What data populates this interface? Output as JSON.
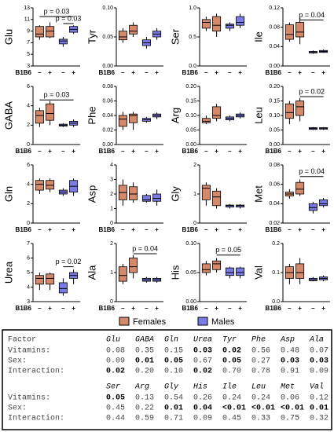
{
  "legend": [
    {
      "name": "Females",
      "color": "#d4896b"
    },
    {
      "name": "Males",
      "color": "#7b7be6"
    }
  ],
  "chart_data": [
    {
      "type": "box",
      "title": "Glu",
      "xlabel": "B1B6",
      "categories": [
        "–",
        "+",
        "–",
        "+"
      ],
      "ylim": [
        3,
        13
      ],
      "yticks": [
        3,
        5,
        7,
        9,
        11,
        13
      ],
      "series": [
        {
          "boxes": [
            [
              7.5,
              8,
              8.5,
              9.8,
              10
            ],
            [
              7.8,
              8,
              9,
              9.8,
              10.5
            ]
          ]
        },
        {
          "boxes": [
            [
              6.3,
              6.8,
              7.3,
              7.6,
              8
            ],
            [
              8.5,
              8.8,
              9.3,
              9.8,
              10
            ]
          ]
        }
      ],
      "annotations": [
        {
          "text": "p = 0.03",
          "from": 0,
          "to": 3,
          "y": 11.5
        },
        {
          "text": "p = 0.03",
          "from": 2,
          "to": 3,
          "y": 10.3
        }
      ]
    },
    {
      "type": "box",
      "title": "Tyr",
      "xlabel": "B1B6",
      "categories": [
        "–",
        "+",
        "–",
        "+"
      ],
      "ylim": [
        0,
        0.1
      ],
      "yticks": [
        {
          "value": 0,
          "label": "0.00"
        },
        0.05,
        {
          "value": 0.1,
          "label": "0.10"
        }
      ],
      "series": [
        {
          "boxes": [
            [
              0.04,
              0.045,
              0.05,
              0.06,
              0.065
            ],
            [
              0.05,
              0.055,
              0.06,
              0.07,
              0.075
            ]
          ]
        },
        {
          "boxes": [
            [
              0.03,
              0.035,
              0.04,
              0.045,
              0.05
            ],
            [
              0.045,
              0.05,
              0.055,
              0.06,
              0.065
            ]
          ]
        }
      ]
    },
    {
      "type": "box",
      "title": "Ser",
      "xlabel": "B1B6",
      "categories": [
        "–",
        "+",
        "–",
        "+"
      ],
      "ylim": [
        0,
        1
      ],
      "yticks": [
        {
          "value": 0,
          "label": "0.0"
        },
        0.5,
        {
          "value": 1,
          "label": "1.0"
        }
      ],
      "series": [
        {
          "boxes": [
            [
              0.6,
              0.65,
              0.75,
              0.8,
              0.85
            ],
            [
              0.5,
              0.6,
              0.7,
              0.85,
              0.9
            ]
          ]
        },
        {
          "boxes": [
            [
              0.6,
              0.65,
              0.7,
              0.72,
              0.75
            ],
            [
              0.65,
              0.7,
              0.75,
              0.85,
              0.9
            ]
          ]
        }
      ]
    },
    {
      "type": "box",
      "title": "Ile",
      "xlabel": "B1B6",
      "categories": [
        "–",
        "+",
        "–",
        "+"
      ],
      "ylim": [
        0,
        0.12
      ],
      "yticks": [
        {
          "value": 0,
          "label": "0.00"
        },
        0.04,
        0.08,
        0.12
      ],
      "series": [
        {
          "boxes": [
            [
              0.05,
              0.055,
              0.065,
              0.085,
              0.09
            ],
            [
              0.045,
              0.06,
              0.07,
              0.09,
              0.1
            ]
          ]
        },
        {
          "boxes": [
            [
              0.025,
              0.027,
              0.028,
              0.03,
              0.032
            ],
            [
              0.027,
              0.028,
              0.03,
              0.032,
              0.034
            ]
          ]
        }
      ],
      "annotations": [
        {
          "text": "p = 0.04",
          "from": 1,
          "to": 3,
          "y": 0.095
        }
      ]
    },
    {
      "type": "box",
      "title": "GABA",
      "xlabel": "B1B6",
      "categories": [
        "–",
        "+",
        "–",
        "+"
      ],
      "ylim": [
        0,
        6
      ],
      "yticks": [
        0,
        2,
        4,
        6
      ],
      "series": [
        {
          "boxes": [
            [
              1.8,
              2.2,
              3,
              3.5,
              3.8
            ],
            [
              2,
              2.5,
              3.2,
              4.2,
              4.5
            ]
          ]
        },
        {
          "boxes": [
            [
              1.8,
              1.9,
              2,
              2.1,
              2.2
            ],
            [
              1.8,
              2,
              2.2,
              2.4,
              2.6
            ]
          ]
        }
      ],
      "annotations": [
        {
          "text": "p = 0.03",
          "from": 0,
          "to": 3,
          "y": 4.6
        }
      ]
    },
    {
      "type": "box",
      "title": "Phe",
      "xlabel": "B1B6",
      "categories": [
        "–",
        "+",
        "–",
        "+"
      ],
      "ylim": [
        0,
        0.08
      ],
      "yticks": [
        {
          "value": 0,
          "label": "0.00"
        },
        0.02,
        0.04,
        0.06,
        0.08
      ],
      "series": [
        {
          "boxes": [
            [
              0.02,
              0.025,
              0.035,
              0.04,
              0.045
            ],
            [
              0.02,
              0.03,
              0.04,
              0.042,
              0.045
            ]
          ]
        },
        {
          "boxes": [
            [
              0.03,
              0.032,
              0.034,
              0.036,
              0.038
            ],
            [
              0.035,
              0.038,
              0.04,
              0.042,
              0.044
            ]
          ]
        }
      ]
    },
    {
      "type": "box",
      "title": "Arg",
      "xlabel": "B1B6",
      "categories": [
        "–",
        "+",
        "–",
        "+"
      ],
      "ylim": [
        0,
        0.2
      ],
      "yticks": [
        {
          "value": 0,
          "label": "0.00"
        },
        0.05,
        {
          "value": 0.1,
          "label": "0.10"
        },
        0.15,
        {
          "value": 0.2,
          "label": "0.20"
        }
      ],
      "series": [
        {
          "boxes": [
            [
              0.07,
              0.075,
              0.08,
              0.09,
              0.1
            ],
            [
              0.08,
              0.09,
              0.1,
              0.13,
              0.14
            ]
          ]
        },
        {
          "boxes": [
            [
              0.08,
              0.085,
              0.09,
              0.095,
              0.1
            ],
            [
              0.09,
              0.095,
              0.1,
              0.105,
              0.11
            ]
          ]
        }
      ]
    },
    {
      "type": "box",
      "title": "Leu",
      "xlabel": "B1B6",
      "categories": [
        "–",
        "+",
        "–",
        "+"
      ],
      "ylim": [
        0,
        0.2
      ],
      "yticks": [
        {
          "value": 0,
          "label": "0.00"
        },
        0.05,
        {
          "value": 0.1,
          "label": "0.10"
        },
        0.15,
        {
          "value": 0.2,
          "label": "0.20"
        }
      ],
      "series": [
        {
          "boxes": [
            [
              0.07,
              0.09,
              0.11,
              0.14,
              0.15
            ],
            [
              0.08,
              0.1,
              0.13,
              0.15,
              0.16
            ]
          ]
        },
        {
          "boxes": [
            [
              0.05,
              0.052,
              0.055,
              0.058,
              0.06
            ],
            [
              0.05,
              0.053,
              0.056,
              0.058,
              0.06
            ]
          ]
        }
      ],
      "annotations": [
        {
          "text": "p = 0.02",
          "from": 1,
          "to": 3,
          "y": 0.165
        }
      ]
    },
    {
      "type": "box",
      "title": "Gln",
      "xlabel": "B1B6",
      "categories": [
        "–",
        "+",
        "–",
        "+"
      ],
      "ylim": [
        0,
        6
      ],
      "yticks": [
        0,
        2,
        4,
        6
      ],
      "series": [
        {
          "boxes": [
            [
              3,
              3.4,
              4,
              4.4,
              4.6
            ],
            [
              3.2,
              3.5,
              3.9,
              4.4,
              4.6
            ]
          ]
        },
        {
          "boxes": [
            [
              2.8,
              3,
              3.2,
              3.4,
              3.6
            ],
            [
              2.8,
              3.2,
              3.8,
              4.4,
              4.6
            ]
          ]
        }
      ]
    },
    {
      "type": "box",
      "title": "Asp",
      "xlabel": "B1B6",
      "categories": [
        "–",
        "+",
        "–",
        "+"
      ],
      "ylim": [
        0,
        4
      ],
      "yticks": [
        0,
        1,
        2,
        3,
        4
      ],
      "series": [
        {
          "boxes": [
            [
              1.2,
              1.6,
              2.1,
              2.6,
              3
            ],
            [
              1.4,
              1.6,
              2,
              2.5,
              2.8
            ]
          ]
        },
        {
          "boxes": [
            [
              1.4,
              1.5,
              1.6,
              1.9,
              2
            ],
            [
              1.2,
              1.5,
              1.7,
              2,
              2.3
            ]
          ]
        }
      ]
    },
    {
      "type": "box",
      "title": "Gly",
      "xlabel": "B1B6",
      "categories": [
        "–",
        "+",
        "–",
        "+"
      ],
      "ylim": [
        0,
        2
      ],
      "yticks": [
        0,
        1,
        2
      ],
      "series": [
        {
          "boxes": [
            [
              0.6,
              0.8,
              1.2,
              1.3,
              1.4
            ],
            [
              0.5,
              0.6,
              0.9,
              1.1,
              1.2
            ]
          ]
        },
        {
          "boxes": [
            [
              0.5,
              0.55,
              0.6,
              0.62,
              0.65
            ],
            [
              0.5,
              0.55,
              0.6,
              0.62,
              0.65
            ]
          ]
        }
      ]
    },
    {
      "type": "box",
      "title": "Met",
      "xlabel": "B1B6",
      "categories": [
        "–",
        "+",
        "–",
        "+"
      ],
      "ylim": [
        0.02,
        0.08
      ],
      "yticks": [
        0.02,
        0.04,
        0.06,
        0.08
      ],
      "series": [
        {
          "boxes": [
            [
              0.045,
              0.048,
              0.05,
              0.052,
              0.055
            ],
            [
              0.048,
              0.05,
              0.055,
              0.062,
              0.065
            ]
          ]
        },
        {
          "boxes": [
            [
              0.03,
              0.033,
              0.036,
              0.04,
              0.042
            ],
            [
              0.036,
              0.038,
              0.04,
              0.044,
              0.046
            ]
          ]
        }
      ],
      "annotations": [
        {
          "text": "p = 0.04",
          "from": 1,
          "to": 3,
          "y": 0.068
        }
      ]
    },
    {
      "type": "box",
      "title": "Urea",
      "xlabel": "B1B6",
      "categories": [
        "–",
        "+",
        "–",
        "+"
      ],
      "ylim": [
        3,
        7
      ],
      "yticks": [
        3,
        4,
        5,
        6,
        7
      ],
      "series": [
        {
          "boxes": [
            [
              3.8,
              4.2,
              4.6,
              4.8,
              5
            ],
            [
              3.8,
              4.2,
              4.6,
              4.9,
              5
            ]
          ]
        },
        {
          "boxes": [
            [
              3.4,
              3.6,
              3.9,
              4.3,
              4.6
            ],
            [
              4.2,
              4.6,
              4.8,
              5,
              5.2
            ]
          ]
        }
      ],
      "annotations": [
        {
          "text": "p = 0.02",
          "from": 2,
          "to": 3,
          "y": 5.4
        }
      ]
    },
    {
      "type": "box",
      "title": "Ala",
      "xlabel": "B1B6",
      "categories": [
        "–",
        "+",
        "–",
        "+"
      ],
      "ylim": [
        0,
        2
      ],
      "yticks": [
        0,
        1,
        2
      ],
      "series": [
        {
          "boxes": [
            [
              0.6,
              0.7,
              0.9,
              1.2,
              1.3
            ],
            [
              0.8,
              1,
              1.2,
              1.5,
              1.6
            ]
          ]
        },
        {
          "boxes": [
            [
              0.65,
              0.7,
              0.75,
              0.8,
              0.85
            ],
            [
              0.65,
              0.7,
              0.75,
              0.8,
              0.85
            ]
          ]
        }
      ],
      "annotations": [
        {
          "text": "p = 0.04",
          "from": 1,
          "to": 3,
          "y": 1.65
        }
      ]
    },
    {
      "type": "box",
      "title": "His",
      "xlabel": "B1B6",
      "categories": [
        "–",
        "+",
        "–",
        "+"
      ],
      "ylim": [
        0,
        0.1
      ],
      "yticks": [
        {
          "value": 0,
          "label": "0.00"
        },
        0.05,
        {
          "value": 0.1,
          "label": "0.10"
        }
      ],
      "series": [
        {
          "boxes": [
            [
              0.045,
              0.05,
              0.055,
              0.065,
              0.07
            ],
            [
              0.05,
              0.055,
              0.065,
              0.07,
              0.075
            ]
          ]
        },
        {
          "boxes": [
            [
              0.04,
              0.045,
              0.05,
              0.058,
              0.06
            ],
            [
              0.04,
              0.045,
              0.05,
              0.058,
              0.06
            ]
          ]
        }
      ],
      "annotations": [
        {
          "text": "p = 0.05",
          "from": 1,
          "to": 3,
          "y": 0.08
        }
      ]
    },
    {
      "type": "box",
      "title": "Val",
      "xlabel": "B1B6",
      "categories": [
        "–",
        "+",
        "–",
        "+"
      ],
      "ylim": [
        0,
        0.2
      ],
      "yticks": [
        {
          "value": 0,
          "label": "0.0"
        },
        0.1,
        0.2
      ],
      "series": [
        {
          "boxes": [
            [
              0.06,
              0.08,
              0.1,
              0.12,
              0.13
            ],
            [
              0.06,
              0.08,
              0.1,
              0.13,
              0.15
            ]
          ]
        },
        {
          "boxes": [
            [
              0.07,
              0.072,
              0.075,
              0.08,
              0.085
            ],
            [
              0.07,
              0.075,
              0.08,
              0.085,
              0.09
            ]
          ]
        }
      ]
    }
  ],
  "table": {
    "blocks": [
      {
        "factor": "Factor",
        "columns": [
          "Glu",
          "GABA",
          "Gln",
          "Urea",
          "Tyr",
          "Phe",
          "Asp",
          "Ala"
        ],
        "rows": [
          {
            "label": "Vitamins:",
            "values": [
              "0.08",
              "0.35",
              "0.15",
              "0.03",
              "0.02",
              "0.56",
              "0.48",
              "0.07"
            ],
            "bold": [
              3,
              4
            ]
          },
          {
            "label": "Sex:",
            "values": [
              "0.09",
              "0.01",
              "0.05",
              "0.67",
              "0.05",
              "0.27",
              "0.03",
              "0.03"
            ],
            "bold": [
              1,
              2,
              4,
              6,
              7
            ]
          },
          {
            "label": "Interaction:",
            "values": [
              "0.02",
              "0.20",
              "0.10",
              "0.02",
              "0.70",
              "0.78",
              "0.91",
              "0.09"
            ],
            "bold": [
              0,
              3
            ]
          }
        ]
      },
      {
        "columns": [
          "Ser",
          "Arg",
          "Gly",
          "His",
          "Ile",
          "Leu",
          "Met",
          "Val"
        ],
        "rows": [
          {
            "label": "Vitamins:",
            "values": [
              "0.05",
              "0.13",
              "0.54",
              "0.26",
              "0.24",
              "0.24",
              "0.06",
              "0.12"
            ],
            "bold": [
              0
            ]
          },
          {
            "label": "Sex:",
            "values": [
              "0.45",
              "0.22",
              "0.01",
              "0.04",
              "<0.01",
              "<0.01",
              "<0.01",
              "0.01"
            ],
            "bold": [
              2,
              3,
              4,
              5,
              6,
              7
            ]
          },
          {
            "label": "Interaction:",
            "values": [
              "0.44",
              "0.59",
              "0.71",
              "0.09",
              "0.45",
              "0.33",
              "0.75",
              "0.32"
            ]
          }
        ]
      }
    ]
  }
}
